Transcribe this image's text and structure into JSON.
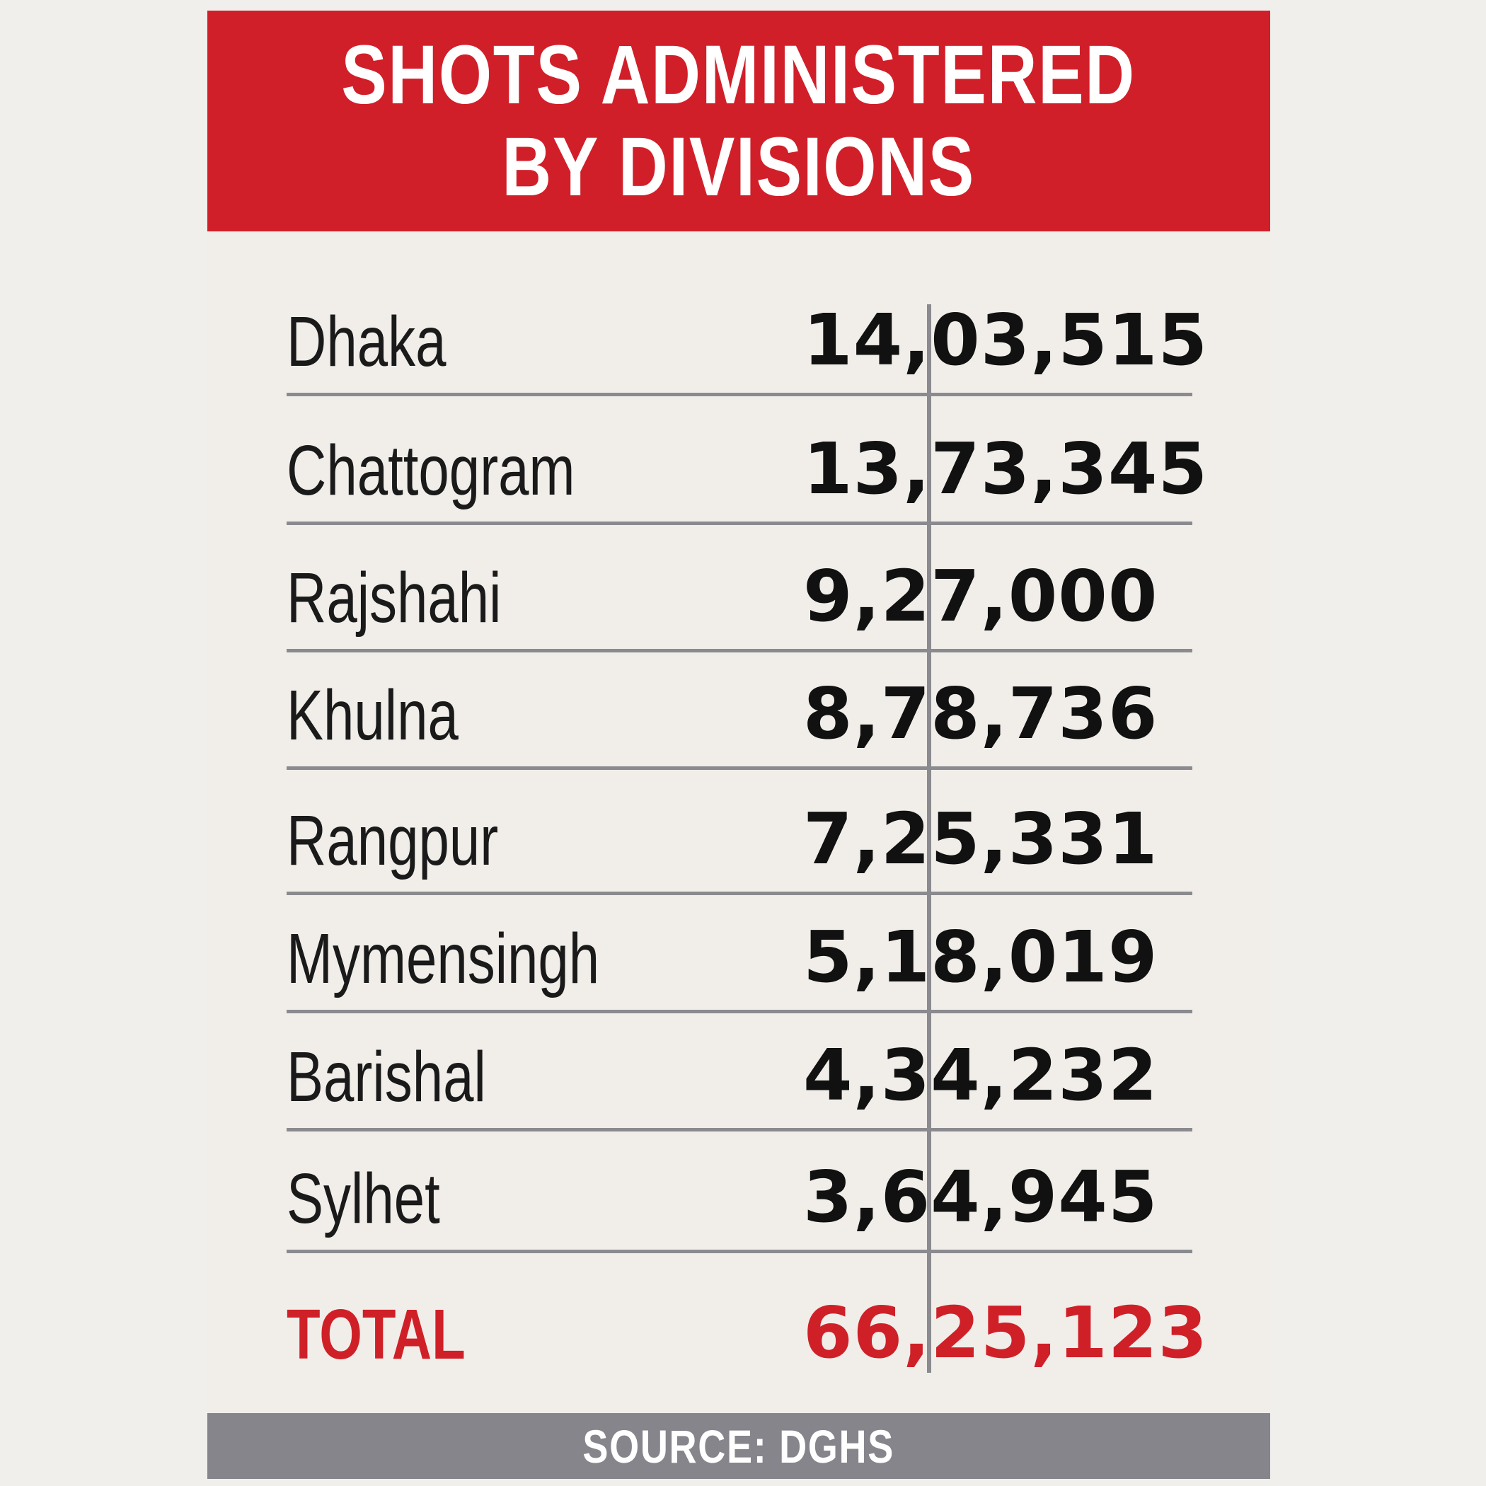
{
  "title": {
    "line1": "SHOTS ADMINISTERED",
    "line2": "BY DIVISIONS"
  },
  "source": "SOURCE: DGHS",
  "colors": {
    "header": "#d11f2a",
    "total_text": "#cf2028",
    "footer": "#85858b",
    "rule": "#8a8a8f"
  },
  "chart_data": {
    "type": "table",
    "title": "SHOTS ADMINISTERED BY DIVISIONS",
    "rows": [
      {
        "name": "Dhaka",
        "value_label": "14,03,515",
        "value": 1403515
      },
      {
        "name": "Chattogram",
        "value_label": "13,73,345",
        "value": 1373345
      },
      {
        "name": "Rajshahi",
        "value_label": "9,27,000",
        "value": 927000
      },
      {
        "name": "Khulna",
        "value_label": "8,78,736",
        "value": 878736
      },
      {
        "name": "Rangpur",
        "value_label": "7,25,331",
        "value": 725331
      },
      {
        "name": "Mymensingh",
        "value_label": "5,18,019",
        "value": 518019
      },
      {
        "name": "Barishal",
        "value_label": "4,34,232",
        "value": 434232
      },
      {
        "name": "Sylhet",
        "value_label": "3,64,945",
        "value": 364945
      }
    ],
    "total": {
      "name": "TOTAL",
      "value_label": "66,25,123",
      "value": 6625123
    },
    "source": "SOURCE: DGHS"
  }
}
